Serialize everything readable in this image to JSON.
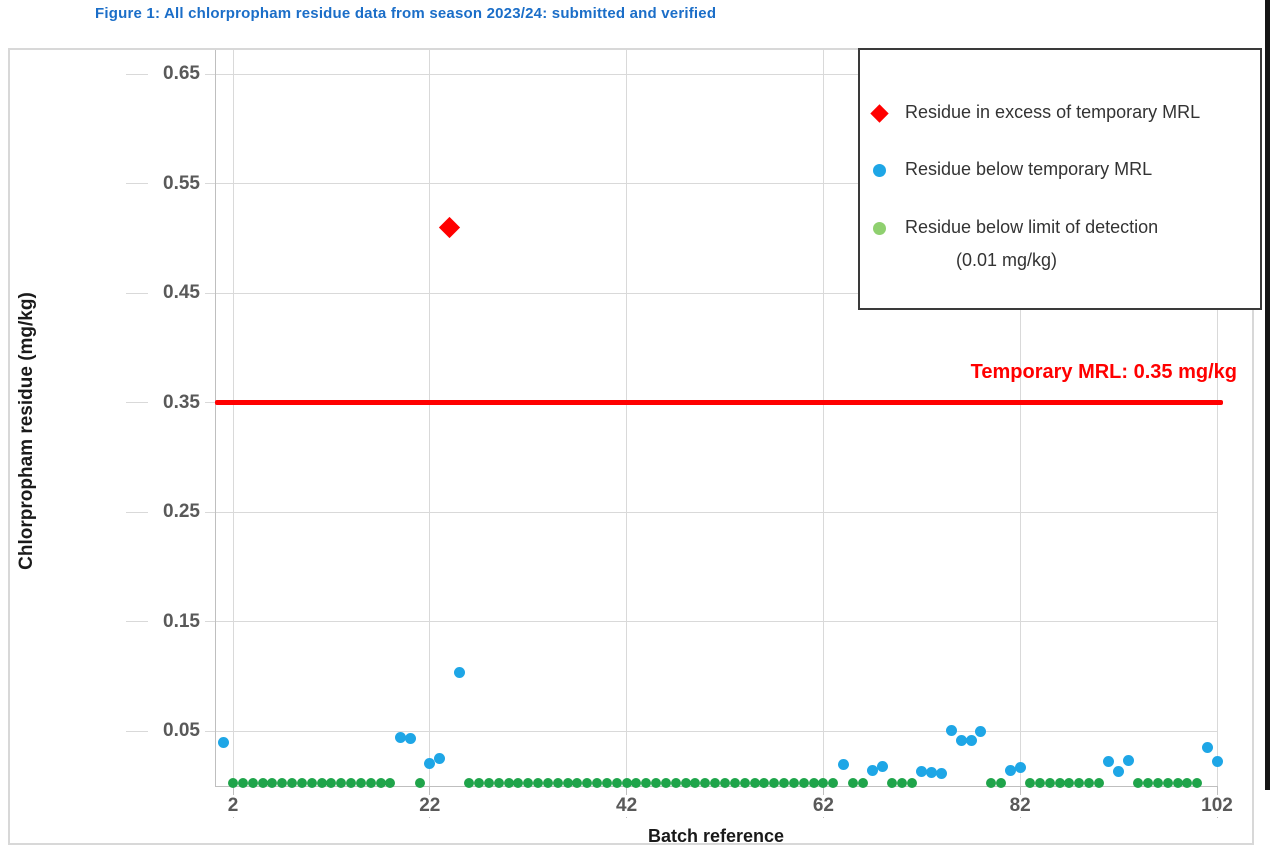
{
  "figure_title": "Figure 1: All chlorpropham residue data from season 2023/24: submitted and verified",
  "colors": {
    "title_blue": "#1B6EC8",
    "marker_red": "#FF0000",
    "marker_blue": "#1EA6E6",
    "marker_green": "#1FA44A",
    "legend_green": "#8FD06F",
    "mrl_red": "#FF0000",
    "tick_label_gray": "#595959",
    "gridline_gray": "#D9D9D9",
    "axis_gray": "#BFBFBF"
  },
  "legend": {
    "items": [
      {
        "marker": "red-diamond",
        "label": "Residue in excess of temporary MRL"
      },
      {
        "marker": "blue-circle",
        "label": "Residue below temporary MRL"
      },
      {
        "marker": "green-circle",
        "label": "Residue below limit of detection",
        "label2": "(0.01 mg/kg)"
      }
    ]
  },
  "mrl": {
    "label": "Temporary MRL: 0.35 mg/kg",
    "value": 0.35
  },
  "chart_data": {
    "type": "scatter",
    "title": "Figure 1: All chlorpropham residue data from season 2023/24: submitted and verified",
    "xlabel": "Batch reference",
    "ylabel": "Chlorpropham residue (mg/kg)",
    "x_ticks": [
      2,
      22,
      42,
      62,
      82,
      102
    ],
    "y_ticks": [
      0.05,
      0.15,
      0.25,
      0.35,
      0.45,
      0.55,
      0.65
    ],
    "xlim": [
      0,
      104
    ],
    "ylim": [
      0,
      0.68
    ],
    "grid": true,
    "legend_position": "top-right",
    "reference_line": {
      "y": 0.35,
      "label": "Temporary MRL: 0.35 mg/kg"
    },
    "series": [
      {
        "name": "Residue in excess of temporary MRL",
        "marker": "diamond",
        "points": [
          {
            "x": 24,
            "y": 0.51
          }
        ]
      },
      {
        "name": "Residue below temporary MRL",
        "marker": "circle",
        "points": [
          {
            "x": 1,
            "y": 0.04
          },
          {
            "x": 19,
            "y": 0.044
          },
          {
            "x": 20,
            "y": 0.043
          },
          {
            "x": 22,
            "y": 0.021
          },
          {
            "x": 23,
            "y": 0.025
          },
          {
            "x": 25,
            "y": 0.104
          },
          {
            "x": 64,
            "y": 0.02
          },
          {
            "x": 67,
            "y": 0.014
          },
          {
            "x": 68,
            "y": 0.018
          },
          {
            "x": 72,
            "y": 0.013
          },
          {
            "x": 73,
            "y": 0.012
          },
          {
            "x": 74,
            "y": 0.011
          },
          {
            "x": 75,
            "y": 0.051
          },
          {
            "x": 76,
            "y": 0.042
          },
          {
            "x": 77,
            "y": 0.042
          },
          {
            "x": 78,
            "y": 0.05
          },
          {
            "x": 81,
            "y": 0.014
          },
          {
            "x": 82,
            "y": 0.017
          },
          {
            "x": 91,
            "y": 0.022
          },
          {
            "x": 92,
            "y": 0.013
          },
          {
            "x": 93,
            "y": 0.023
          },
          {
            "x": 101,
            "y": 0.035
          },
          {
            "x": 102,
            "y": 0.022
          }
        ]
      },
      {
        "name": "Residue below limit of detection (0.01 mg/kg)",
        "marker": "circle",
        "note": "non-detects (<0.01 mg/kg) plotted at baseline",
        "y_plotted": 0.003,
        "x": [
          2,
          3,
          4,
          5,
          6,
          7,
          8,
          9,
          10,
          11,
          12,
          13,
          14,
          15,
          16,
          17,
          18,
          21,
          26,
          27,
          28,
          29,
          30,
          31,
          32,
          33,
          34,
          35,
          36,
          37,
          38,
          39,
          40,
          41,
          42,
          43,
          44,
          45,
          46,
          47,
          48,
          49,
          50,
          51,
          52,
          53,
          54,
          55,
          56,
          57,
          58,
          59,
          60,
          61,
          62,
          63,
          65,
          66,
          69,
          70,
          71,
          79,
          80,
          83,
          84,
          85,
          86,
          87,
          88,
          89,
          90,
          94,
          95,
          96,
          97,
          98,
          99,
          100
        ]
      }
    ]
  }
}
